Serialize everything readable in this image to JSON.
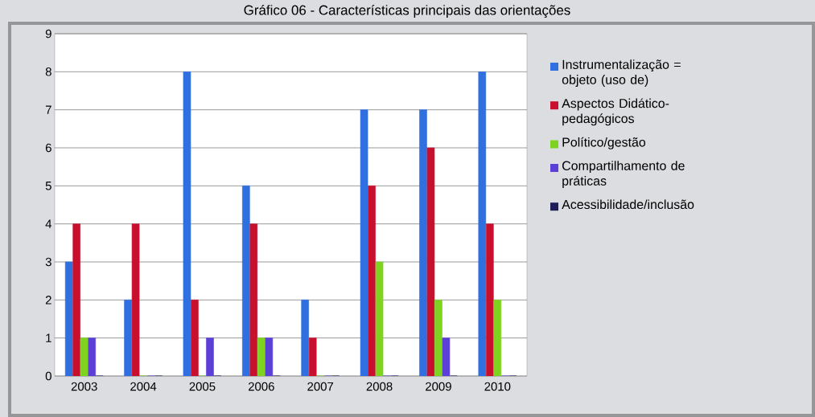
{
  "chart_data": {
    "type": "bar",
    "title": "Gráfico 06 - Características principais das orientações",
    "categories": [
      "2003",
      "2004",
      "2005",
      "2006",
      "2007",
      "2008",
      "2009",
      "2010"
    ],
    "series": [
      {
        "name": "Instrumentalização = objeto (uso de)",
        "color": "#2f6fe0",
        "values": [
          3,
          2,
          8,
          5,
          2,
          7,
          7,
          8
        ]
      },
      {
        "name": "Aspectos  Didático-pedagógicos",
        "color": "#c8102e",
        "values": [
          4,
          4,
          2,
          4,
          1,
          5,
          6,
          4
        ]
      },
      {
        "name": "Político/gestão",
        "color": "#7ed321",
        "values": [
          1,
          0,
          0,
          1,
          0,
          3,
          2,
          2
        ]
      },
      {
        "name": "Compartilhamento de práticas",
        "color": "#5b3fd6",
        "values": [
          1,
          0,
          1,
          1,
          0,
          0,
          1,
          0
        ]
      },
      {
        "name": "Acessibilidade/inclusão",
        "color": "#1e1e5a",
        "values": [
          0,
          0,
          0,
          0,
          0,
          0,
          0,
          0
        ]
      }
    ],
    "ylim": [
      0,
      9
    ],
    "yticks": [
      0,
      1,
      2,
      3,
      4,
      5,
      6,
      7,
      8,
      9
    ],
    "grid": "y",
    "legend": "right"
  }
}
